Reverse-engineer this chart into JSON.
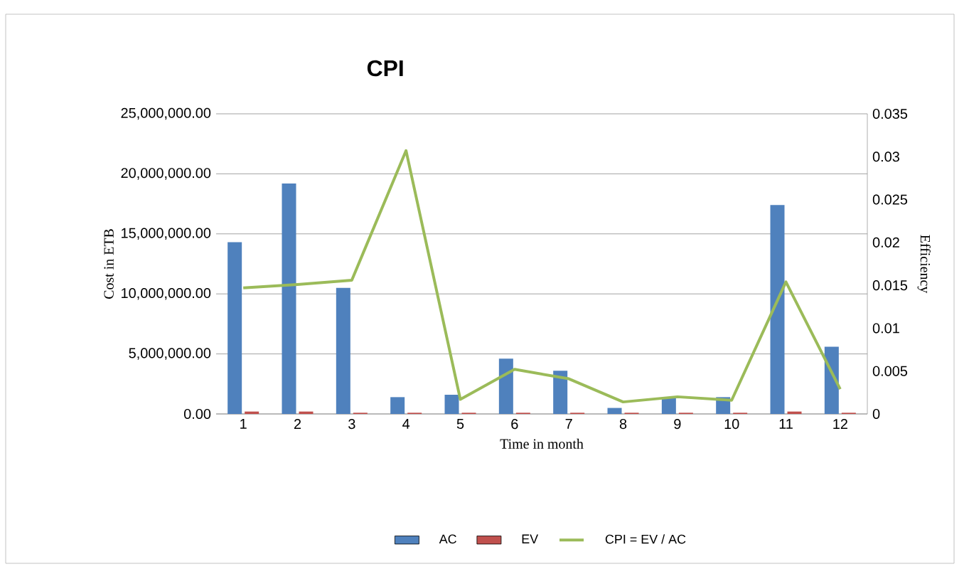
{
  "chart_data": {
    "type": "bar",
    "title": "CPI",
    "xlabel": "Time in month",
    "ylabel": "Cost in ETB",
    "y2label": "Efficiency",
    "categories": [
      "1",
      "2",
      "3",
      "4",
      "5",
      "6",
      "7",
      "8",
      "9",
      "10",
      "11",
      "12"
    ],
    "series": [
      {
        "name": "AC",
        "color": "#4f81bd",
        "values": [
          14300000,
          19200000,
          10500000,
          1400000,
          1600000,
          4600000,
          3600000,
          500000,
          1400000,
          1400000,
          17400000,
          5600000
        ]
      },
      {
        "name": "EV",
        "color": "#c0504d",
        "values": [
          200000,
          200000,
          100000,
          100000,
          100000,
          100000,
          100000,
          100000,
          100000,
          100000,
          200000,
          100000
        ]
      },
      {
        "name": "CPI = EV / AC",
        "type": "line",
        "axis": "y2",
        "color": "#9bbb59",
        "values": [
          0.0147,
          0.0151,
          0.0156,
          0.0307,
          0.0017,
          0.0052,
          0.0041,
          0.0014,
          0.002,
          0.0016,
          0.0154,
          0.0029
        ]
      }
    ],
    "ylim": [
      0,
      25000000
    ],
    "yticks": [
      {
        "value": 0,
        "label": "0.00"
      },
      {
        "value": 5000000,
        "label": "5,000,000.00"
      },
      {
        "value": 10000000,
        "label": "10,000,000.00"
      },
      {
        "value": 15000000,
        "label": "15,000,000.00"
      },
      {
        "value": 20000000,
        "label": "20,000,000.00"
      },
      {
        "value": 25000000,
        "label": "25,000,000.00"
      }
    ],
    "y2lim": [
      0,
      0.035
    ],
    "y2ticks": [
      0,
      0.005,
      0.01,
      0.015,
      0.02,
      0.025,
      0.03,
      0.035
    ],
    "grid": "y",
    "legend": "bottom"
  }
}
